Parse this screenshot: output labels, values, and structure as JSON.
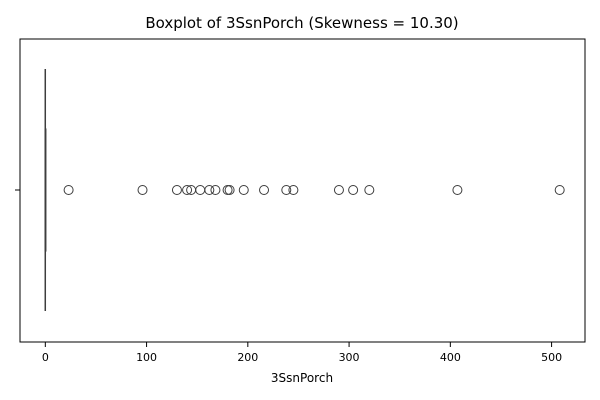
{
  "chart_data": {
    "type": "boxplot",
    "orientation": "horizontal",
    "title": "Boxplot of 3SsnPorch (Skewness = 10.30)",
    "xlabel": "3SsnPorch",
    "ylabel": "",
    "xlim": [
      -25,
      533
    ],
    "xticks": [
      0,
      100,
      200,
      300,
      400,
      500
    ],
    "yticks": [
      ""
    ],
    "box": {
      "min": 0,
      "q1": 0,
      "median": 0,
      "q3": 0,
      "max": 0
    },
    "outliers": [
      23,
      96,
      130,
      140,
      144,
      153,
      162,
      168,
      180,
      182,
      196,
      216,
      238,
      245,
      290,
      304,
      320,
      407,
      508
    ],
    "colors": {
      "line": "#3d3d3d",
      "box_fill": "#1f77b4"
    }
  }
}
